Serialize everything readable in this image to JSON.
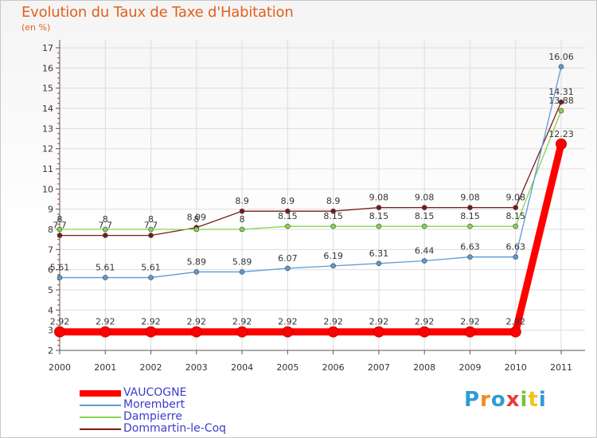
{
  "header": {
    "title": "Evolution du Taux de Taxe d'Habitation",
    "subtitle": "(en %)"
  },
  "colors": {
    "title": "#e0611a",
    "legend_text": "#3c3ccc",
    "axis": "#555555",
    "grid": "#dddddd"
  },
  "chart_data": {
    "type": "line",
    "title": "Evolution du Taux de Taxe d'Habitation",
    "ylabel": "(en %)",
    "x": [
      "2000",
      "2001",
      "2002",
      "2003",
      "2004",
      "2005",
      "2006",
      "2007",
      "2008",
      "2009",
      "2010",
      "2011"
    ],
    "ylim": [
      2,
      17
    ],
    "yticks": [
      2,
      3,
      4,
      5,
      6,
      7,
      8,
      9,
      10,
      11,
      12,
      13,
      14,
      15,
      16,
      17
    ],
    "grid": true,
    "legend": "bottom-left",
    "series": [
      {
        "name": "Dommartin-le-Coq",
        "color": "#7a1a1a",
        "values": [
          7.7,
          7.7,
          7.7,
          8.09,
          8.9,
          8.9,
          8.9,
          9.08,
          9.08,
          9.08,
          9.08,
          14.31
        ],
        "labels": [
          "7.7",
          "7.7",
          "7.7",
          "8.09",
          "8.9",
          "8.9",
          "8.9",
          "9.08",
          "9.08",
          "9.08",
          "9.08",
          "14.31"
        ]
      },
      {
        "name": "Dampierre",
        "color": "#88d44a",
        "values": [
          8,
          8,
          8,
          8,
          8,
          8.15,
          8.15,
          8.15,
          8.15,
          8.15,
          8.15,
          13.88
        ],
        "labels": [
          "8",
          "8",
          "8",
          "8",
          "8",
          "8.15",
          "8.15",
          "8.15",
          "8.15",
          "8.15",
          "8.15",
          "13.88"
        ]
      },
      {
        "name": "Morembert",
        "color": "#5b9bd5",
        "values": [
          5.61,
          5.61,
          5.61,
          5.89,
          5.89,
          6.07,
          6.19,
          6.31,
          6.44,
          6.63,
          6.63,
          16.06
        ],
        "labels": [
          "5.61",
          "5.61",
          "5.61",
          "5.89",
          "5.89",
          "6.07",
          "6.19",
          "6.31",
          "6.44",
          "6.63",
          "6.63",
          "16.06"
        ]
      },
      {
        "name": "VAUCOGNE",
        "color": "#ff0000",
        "values": [
          2.92,
          2.92,
          2.92,
          2.92,
          2.92,
          2.92,
          2.92,
          2.92,
          2.92,
          2.92,
          2.92,
          12.23
        ],
        "labels": [
          "2.92",
          "2.92",
          "2.92",
          "2.92",
          "2.92",
          "2.92",
          "2.92",
          "2.92",
          "2.92",
          "2.92",
          "2.92",
          "12.23"
        ]
      }
    ],
    "legend_entries": [
      {
        "name": "VAUCOGNE",
        "color": "#ff0000",
        "thick": true
      },
      {
        "name": "Morembert",
        "color": "#5b9bd5",
        "thick": false
      },
      {
        "name": "Dampierre",
        "color": "#88d44a",
        "thick": false
      },
      {
        "name": "Dommartin-le-Coq",
        "color": "#7a1a1a",
        "thick": false
      }
    ]
  },
  "logo": {
    "text": "Proxiti",
    "letters": [
      {
        "ch": "P",
        "color": "#2e9bd6"
      },
      {
        "ch": "r",
        "color": "#f08a1c"
      },
      {
        "ch": "o",
        "color": "#2e9bd6"
      },
      {
        "ch": "x",
        "color": "#e83c3c"
      },
      {
        "ch": "i",
        "color": "#7ac143"
      },
      {
        "ch": "t",
        "color": "#f0c419"
      },
      {
        "ch": "i",
        "color": "#2e9bd6"
      }
    ]
  }
}
